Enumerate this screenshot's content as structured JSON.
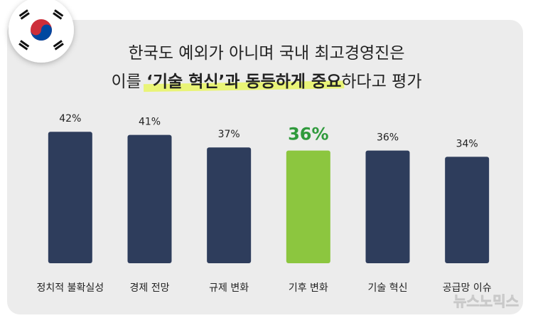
{
  "chart_data": {
    "type": "bar",
    "title_lines": [
      [
        "한국도 예외가 아니며 국내 최고경영진은"
      ],
      [
        "이를 ",
        "‘기술 혁신’과 동등하게 중요",
        "하다고 평가"
      ]
    ],
    "categories": [
      "정치적 불확실성",
      "경제 전망",
      "규제 변화",
      "기후 변화",
      "기술 혁신",
      "공급망 이슈"
    ],
    "values": [
      42,
      41,
      37,
      36,
      36,
      34
    ],
    "value_labels": [
      "42%",
      "41%",
      "37%",
      "36%",
      "36%",
      "34%"
    ],
    "colors": [
      "#2e3d5c",
      "#2e3d5c",
      "#2e3d5c",
      "#8cc63f",
      "#2e3d5c",
      "#2e3d5c"
    ],
    "label_colors": [
      "#222222",
      "#222222",
      "#222222",
      "#2f9a3c",
      "#222222",
      "#222222"
    ],
    "watermark": "뉴스노믹스"
  }
}
